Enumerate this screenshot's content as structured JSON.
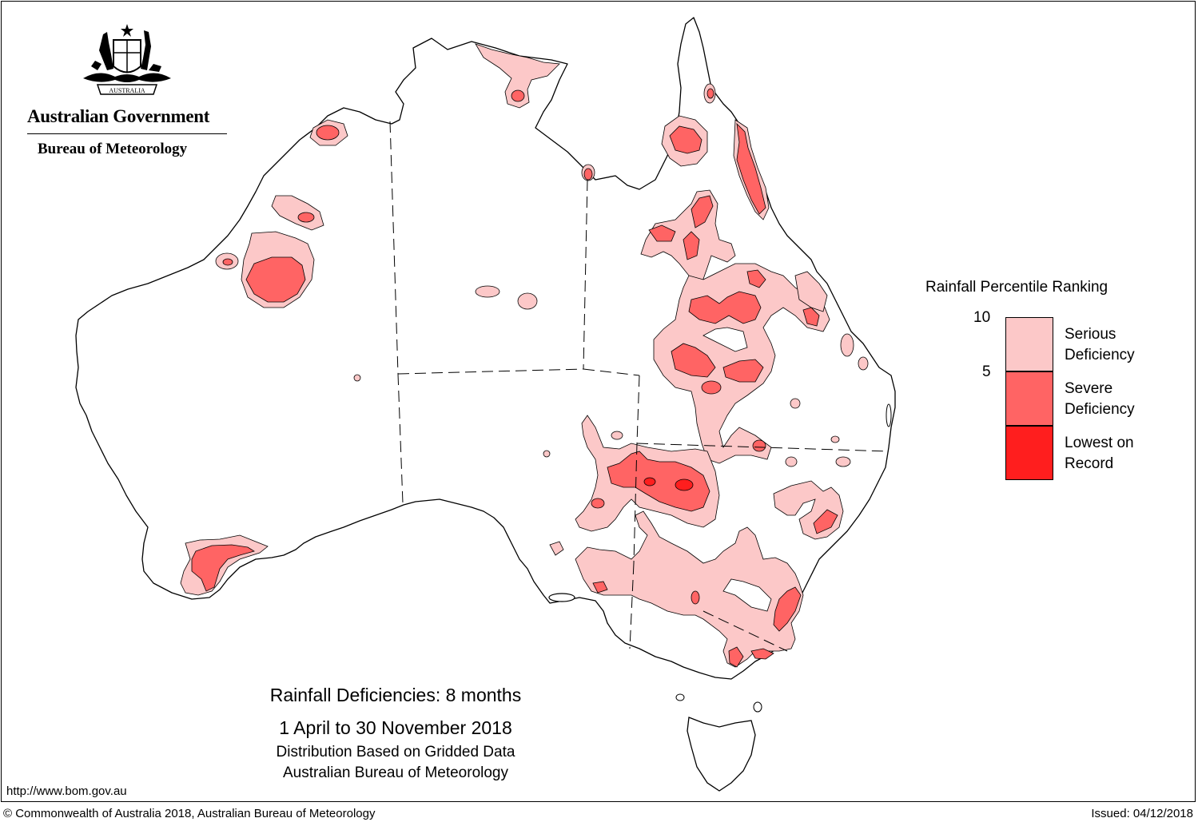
{
  "header": {
    "organisation": "Australian Government",
    "agency": "Bureau of Meteorology",
    "crest_label": "AUSTRALIA"
  },
  "legend": {
    "title": "Rainfall Percentile Ranking",
    "ticks": [
      "10",
      "5"
    ],
    "categories": [
      {
        "label_line1": "Serious",
        "label_line2": "Deficiency",
        "color": "#fcc8c8"
      },
      {
        "label_line1": "Severe",
        "label_line2": "Deficiency",
        "color": "#ff6464"
      },
      {
        "label_line1": "Lowest on",
        "label_line2": "Record",
        "color": "#ff1e1e"
      }
    ]
  },
  "caption": {
    "line1": "Rainfall Deficiencies: 8 months",
    "line2": "1 April to 30 November 2018",
    "line3": "Distribution Based on Gridded Data",
    "line4": "Australian Bureau of Meteorology"
  },
  "footer": {
    "url": "http://www.bom.gov.au",
    "copyright": "© Commonwealth of Australia 2018, Australian Bureau of Meteorology",
    "issued": "Issued: 04/12/2018"
  },
  "map": {
    "region": "Australia",
    "icons": [
      "coat-of-arms-icon"
    ]
  }
}
